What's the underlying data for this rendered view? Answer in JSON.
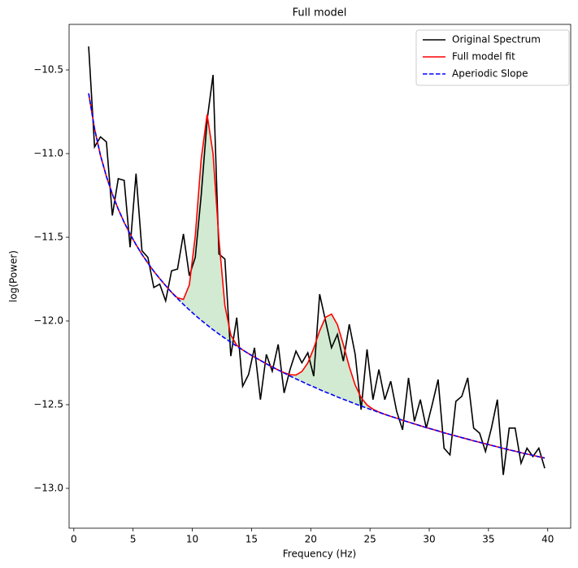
{
  "chart_data": {
    "type": "line",
    "title": "Full model",
    "x_label": "Frequency (Hz)",
    "y_label": "log(Power)",
    "x": [
      1.25,
      1.75,
      2.25,
      2.75,
      3.25,
      3.75,
      4.25,
      4.75,
      5.25,
      5.75,
      6.25,
      6.75,
      7.25,
      7.75,
      8.25,
      8.75,
      9.25,
      9.75,
      10.25,
      10.75,
      11.25,
      11.75,
      12.25,
      12.75,
      13.25,
      13.75,
      14.25,
      14.75,
      15.25,
      15.75,
      16.25,
      16.75,
      17.25,
      17.75,
      18.25,
      18.75,
      19.25,
      19.75,
      20.25,
      20.75,
      21.25,
      21.75,
      22.25,
      22.75,
      23.25,
      23.75,
      24.25,
      24.75,
      25.25,
      25.75,
      26.25,
      26.75,
      27.25,
      27.75,
      28.25,
      28.75,
      29.25,
      29.75,
      30.25,
      30.75,
      31.25,
      31.75,
      32.25,
      32.75,
      33.25,
      33.75,
      34.25,
      34.75,
      35.25,
      35.75,
      36.25,
      36.75,
      37.25,
      37.75,
      38.25,
      38.75,
      39.25,
      39.75
    ],
    "series": [
      {
        "name": "Original Spectrum",
        "color": "#000000",
        "style": "solid",
        "values": [
          -10.36,
          -10.96,
          -10.9,
          -10.93,
          -11.37,
          -11.15,
          -11.16,
          -11.56,
          -11.12,
          -11.58,
          -11.62,
          -11.8,
          -11.78,
          -11.88,
          -11.7,
          -11.69,
          -11.48,
          -11.73,
          -11.62,
          -11.25,
          -10.8,
          -10.53,
          -11.6,
          -11.63,
          -12.21,
          -11.98,
          -12.39,
          -12.32,
          -12.16,
          -12.47,
          -12.2,
          -12.3,
          -12.14,
          -12.43,
          -12.29,
          -12.18,
          -12.25,
          -12.19,
          -12.33,
          -11.84,
          -12.0,
          -12.16,
          -12.08,
          -12.24,
          -12.02,
          -12.2,
          -12.53,
          -12.17,
          -12.47,
          -12.29,
          -12.47,
          -12.36,
          -12.54,
          -12.65,
          -12.34,
          -12.6,
          -12.47,
          -12.64,
          -12.5,
          -12.35,
          -12.76,
          -12.8,
          -12.48,
          -12.45,
          -12.34,
          -12.64,
          -12.67,
          -12.78,
          -12.64,
          -12.47,
          -12.92,
          -12.64,
          -12.64,
          -12.85,
          -12.76,
          -12.81,
          -12.76,
          -12.88
        ]
      },
      {
        "name": "Full model fit",
        "color": "#ff0000",
        "style": "solid",
        "values": [
          -10.64,
          -10.852,
          -11.011,
          -11.137,
          -11.242,
          -11.332,
          -11.411,
          -11.481,
          -11.544,
          -11.602,
          -11.654,
          -11.703,
          -11.747,
          -11.789,
          -11.829,
          -11.862,
          -11.871,
          -11.785,
          -11.493,
          -11.033,
          -10.766,
          -11.0,
          -11.513,
          -11.908,
          -12.084,
          -12.145,
          -12.173,
          -12.195,
          -12.216,
          -12.236,
          -12.256,
          -12.275,
          -12.293,
          -12.309,
          -12.321,
          -12.323,
          -12.302,
          -12.251,
          -12.163,
          -12.059,
          -11.978,
          -11.959,
          -12.022,
          -12.141,
          -12.273,
          -12.383,
          -12.458,
          -12.502,
          -12.527,
          -12.544,
          -12.558,
          -12.57,
          -12.581,
          -12.593,
          -12.604,
          -12.615,
          -12.626,
          -12.637,
          -12.647,
          -12.657,
          -12.668,
          -12.678,
          -12.687,
          -12.697,
          -12.706,
          -12.716,
          -12.725,
          -12.734,
          -12.743,
          -12.752,
          -12.761,
          -12.77,
          -12.778,
          -12.787,
          -12.795,
          -12.803,
          -12.811,
          -12.819
        ]
      },
      {
        "name": "Aperiodic Slope",
        "color": "#0000ff",
        "style": "dashed",
        "values": [
          -10.64,
          -10.852,
          -11.011,
          -11.137,
          -11.242,
          -11.332,
          -11.411,
          -11.481,
          -11.544,
          -11.602,
          -11.654,
          -11.703,
          -11.747,
          -11.789,
          -11.829,
          -11.866,
          -11.901,
          -11.934,
          -11.966,
          -11.996,
          -12.024,
          -12.052,
          -12.078,
          -12.103,
          -12.127,
          -12.151,
          -12.173,
          -12.195,
          -12.216,
          -12.236,
          -12.256,
          -12.275,
          -12.293,
          -12.311,
          -12.329,
          -12.346,
          -12.362,
          -12.379,
          -12.394,
          -12.41,
          -12.425,
          -12.439,
          -12.454,
          -12.468,
          -12.481,
          -12.495,
          -12.508,
          -12.521,
          -12.533,
          -12.546,
          -12.558,
          -12.57,
          -12.581,
          -12.593,
          -12.604,
          -12.615,
          -12.626,
          -12.637,
          -12.647,
          -12.657,
          -12.668,
          -12.678,
          -12.687,
          -12.697,
          -12.706,
          -12.716,
          -12.725,
          -12.734,
          -12.743,
          -12.752,
          -12.761,
          -12.77,
          -12.778,
          -12.787,
          -12.795,
          -12.803,
          -12.811,
          -12.819
        ]
      }
    ],
    "shade_color": "#2ca02c",
    "xlim": [
      -0.4,
      41.94
    ],
    "xticks": [
      0,
      5,
      10,
      15,
      20,
      25,
      30,
      35,
      40
    ],
    "ylim": [
      -13.238,
      -10.228
    ],
    "yticks": [
      {
        "value": -13,
        "label": "−13.0"
      },
      {
        "value": -12.5,
        "label": "−12.5"
      },
      {
        "value": -12,
        "label": "−12.0"
      },
      {
        "value": -11.5,
        "label": "−11.5"
      },
      {
        "value": -11,
        "label": "−11.0"
      },
      {
        "value": -10.5,
        "label": "−10.5"
      }
    ],
    "legend": "upper right",
    "grid": false
  }
}
